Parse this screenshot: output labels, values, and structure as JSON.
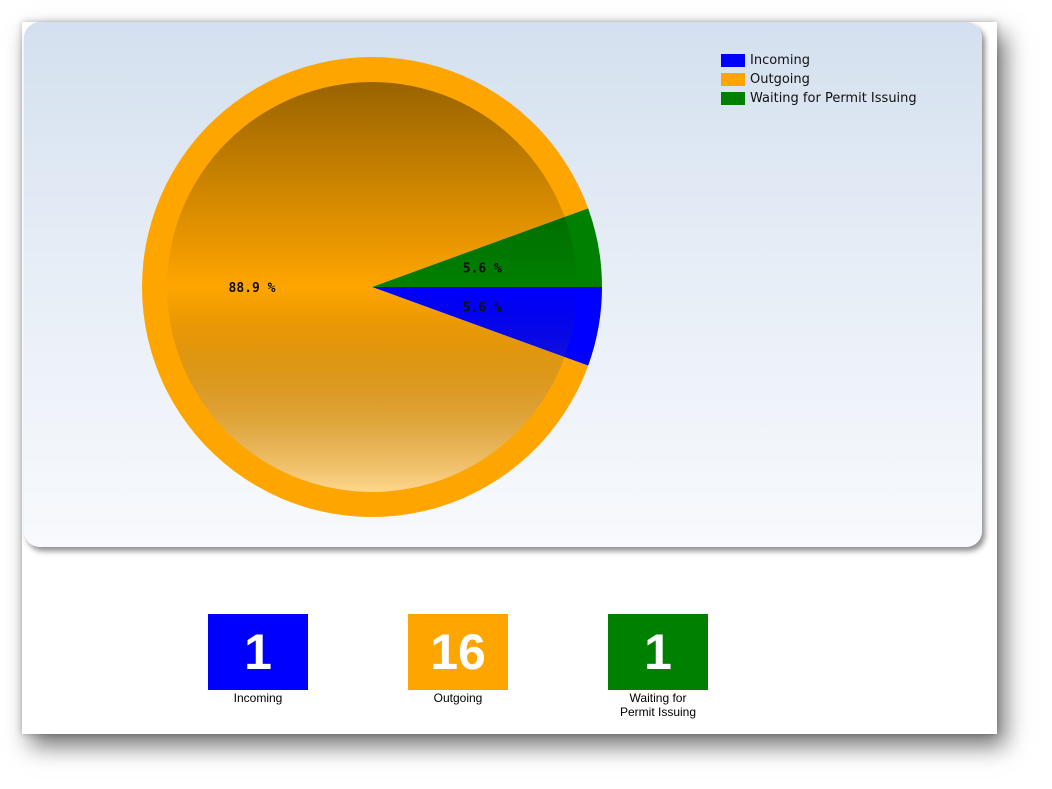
{
  "chart_data": {
    "type": "pie",
    "series": [
      {
        "name": "Incoming",
        "value": 1,
        "percent_label": "5.6 %",
        "color": "#0000ff"
      },
      {
        "name": "Outgoing",
        "value": 16,
        "percent_label": "88.9 %",
        "color": "#ffa500"
      },
      {
        "name": "Waiting for Permit Issuing",
        "value": 1,
        "percent_label": "5.6 %",
        "color": "#008000"
      }
    ],
    "legend": {
      "position": "top-right",
      "items": [
        {
          "label": "Incoming",
          "color": "#0000ff"
        },
        {
          "label": "Outgoing",
          "color": "#ffa500"
        },
        {
          "label": "Waiting for Permit Issuing",
          "color": "#008000"
        }
      ]
    }
  },
  "tiles": [
    {
      "value": "1",
      "label": "Incoming",
      "color": "#0000ff"
    },
    {
      "value": "16",
      "label": "Outgoing",
      "color": "#ffa500"
    },
    {
      "value": "1",
      "label": "Waiting for\nPermit Issuing",
      "color": "#008000"
    }
  ]
}
